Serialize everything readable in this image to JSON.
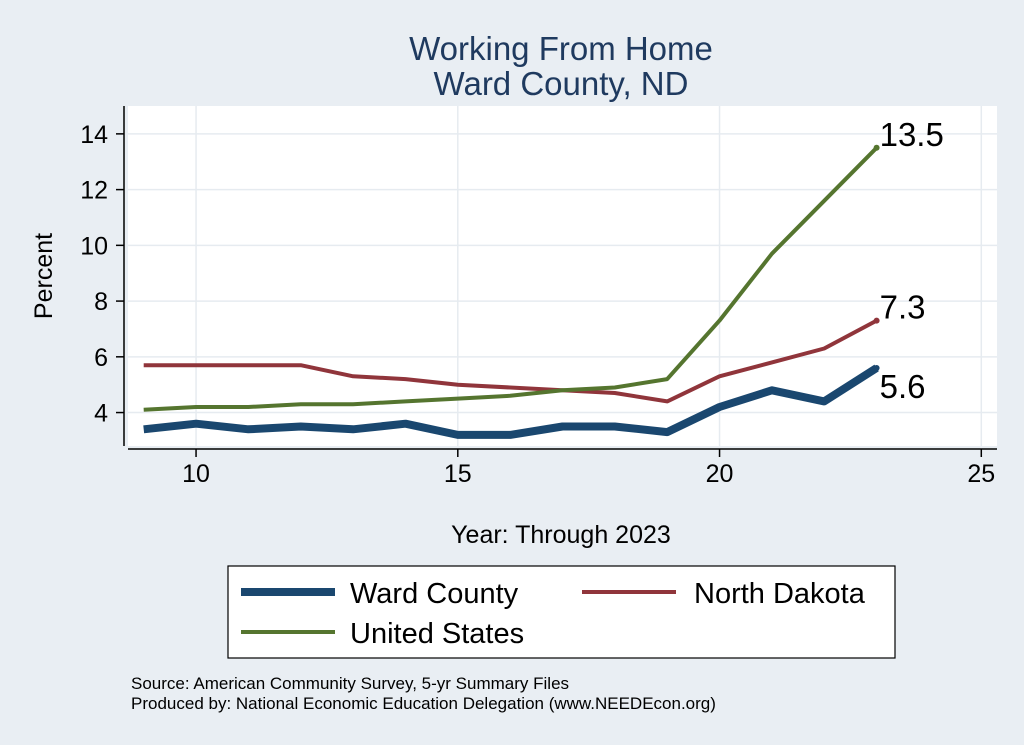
{
  "chart_data": {
    "type": "line",
    "title": "Working From Home",
    "subtitle": "Ward County, ND",
    "xlabel": "Year: Through 2023",
    "ylabel": "Percent",
    "xlim": [
      8.7,
      25.3
    ],
    "ylim": [
      2.8,
      15.0
    ],
    "xticks": [
      10,
      15,
      20,
      25
    ],
    "yticks": [
      4,
      6,
      8,
      10,
      12,
      14
    ],
    "grid": true,
    "legend_position": "bottom",
    "x": [
      9,
      10,
      11,
      12,
      13,
      14,
      15,
      16,
      17,
      18,
      19,
      20,
      21,
      22,
      23
    ],
    "series": [
      {
        "name": "Ward County",
        "color": "#1a476f",
        "width": 8,
        "values": [
          3.4,
          3.6,
          3.4,
          3.5,
          3.4,
          3.6,
          3.2,
          3.2,
          3.5,
          3.5,
          3.3,
          4.2,
          4.8,
          4.4,
          5.6
        ],
        "end_label": "5.6"
      },
      {
        "name": "North Dakota",
        "color": "#90353b",
        "width": 4,
        "values": [
          5.7,
          5.7,
          5.7,
          5.7,
          5.3,
          5.2,
          5.0,
          4.9,
          4.8,
          4.7,
          4.4,
          5.3,
          5.8,
          6.3,
          7.3
        ],
        "end_label": "7.3"
      },
      {
        "name": "United States",
        "color": "#55752f",
        "width": 4,
        "values": [
          4.1,
          4.2,
          4.2,
          4.3,
          4.3,
          4.4,
          4.5,
          4.6,
          4.8,
          4.9,
          5.2,
          7.3,
          9.7,
          11.6,
          13.5
        ],
        "end_label": "13.5"
      }
    ]
  },
  "notes": {
    "source": "Source: American Community Survey, 5-yr Summary Files",
    "produced": "Produced by: National Economic Education Delegation (www.NEEDEcon.org)"
  }
}
